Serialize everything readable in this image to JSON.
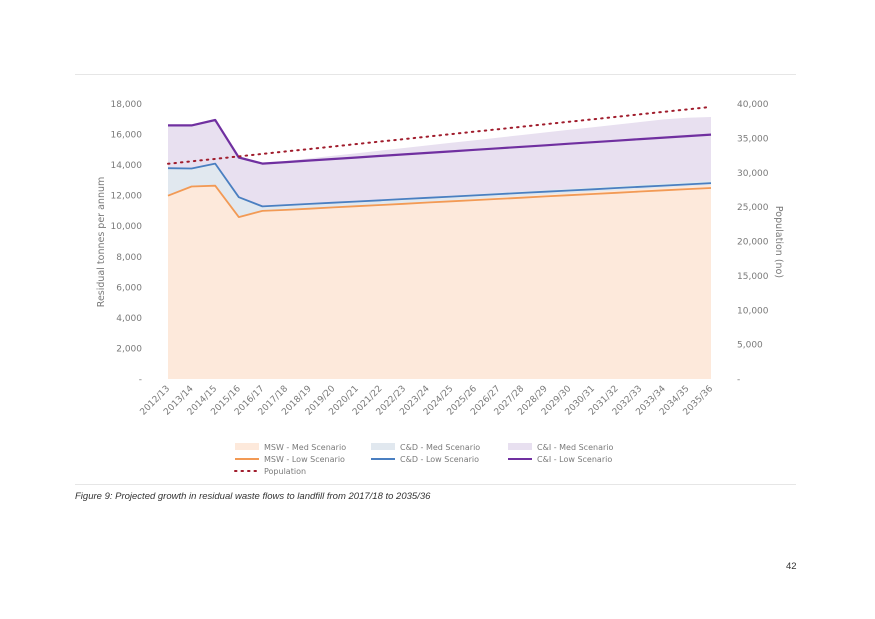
{
  "caption": "Figure 9: Projected growth in residual waste flows to landfill from 2017/18 to 2035/36",
  "page_number": "42",
  "chart_data": {
    "type": "area",
    "title": "",
    "ylabel": "Residual tonnes per annum",
    "y2label": "Population (no)",
    "ylim": [
      0,
      18000
    ],
    "y2lim": [
      0,
      40000
    ],
    "yticks": [
      "-",
      "2,000",
      "4,000",
      "6,000",
      "8,000",
      "10,000",
      "12,000",
      "14,000",
      "16,000",
      "18,000"
    ],
    "y2ticks": [
      "-",
      "5,000",
      "10,000",
      "15,000",
      "20,000",
      "25,000",
      "30,000",
      "35,000",
      "40,000"
    ],
    "grid": false,
    "legend_position": "bottom",
    "categories": [
      "2012/13",
      "2013/14",
      "2014/15",
      "2015/16",
      "2016/17",
      "2017/18",
      "2018/19",
      "2019/20",
      "2020/21",
      "2021/22",
      "2022/23",
      "2023/24",
      "2024/25",
      "2025/26",
      "2026/27",
      "2027/28",
      "2028/29",
      "2029/30",
      "2030/31",
      "2031/32",
      "2032/33",
      "2033/34",
      "2034/35",
      "2035/36"
    ],
    "series": [
      {
        "name": "MSW - Med Scenario",
        "kind": "area",
        "axis": "left",
        "color": "#fde9db",
        "values": [
          12000,
          12600,
          12650,
          10600,
          11000,
          11080,
          11170,
          11260,
          11350,
          11440,
          11530,
          11620,
          11710,
          11800,
          11890,
          11980,
          12070,
          12160,
          12250,
          12340,
          12430,
          12520,
          12610,
          12700
        ]
      },
      {
        "name": "C&D - Med Scenario",
        "kind": "area",
        "axis": "left",
        "color": "#e1e8ef",
        "values": [
          13800,
          13780,
          14100,
          11900,
          11300,
          11380,
          11470,
          11560,
          11650,
          11740,
          11830,
          11920,
          12010,
          12100,
          12190,
          12280,
          12370,
          12460,
          12550,
          12640,
          12730,
          12820,
          12910,
          13000
        ]
      },
      {
        "name": "C&I - Med Scenario",
        "kind": "area",
        "axis": "left",
        "color": "#e8e0f0",
        "values": [
          16600,
          16600,
          16950,
          14500,
          14100,
          14270,
          14440,
          14610,
          14780,
          14950,
          15120,
          15290,
          15460,
          15630,
          15800,
          15970,
          16140,
          16310,
          16480,
          16650,
          16820,
          16990,
          17100,
          17150
        ]
      },
      {
        "name": "MSW - Low Scenario",
        "kind": "line",
        "axis": "left",
        "color": "#f29a55",
        "values": [
          12000,
          12600,
          12650,
          10600,
          11000,
          11070,
          11150,
          11230,
          11310,
          11390,
          11470,
          11550,
          11630,
          11710,
          11790,
          11870,
          11950,
          12030,
          12110,
          12190,
          12270,
          12350,
          12430,
          12500
        ]
      },
      {
        "name": "C&D - Low Scenario",
        "kind": "line",
        "axis": "left",
        "color": "#4a7fc1",
        "values": [
          13800,
          13780,
          14100,
          11900,
          11300,
          11380,
          11460,
          11540,
          11620,
          11700,
          11780,
          11860,
          11940,
          12020,
          12100,
          12180,
          12260,
          12340,
          12420,
          12500,
          12580,
          12660,
          12740,
          12820
        ]
      },
      {
        "name": "C&I - Low Scenario",
        "kind": "line",
        "axis": "left",
        "color": "#7030a0",
        "values": [
          16600,
          16600,
          16950,
          14500,
          14100,
          14200,
          14300,
          14400,
          14500,
          14600,
          14700,
          14800,
          14900,
          15000,
          15100,
          15200,
          15300,
          15400,
          15500,
          15600,
          15700,
          15800,
          15900,
          16000
        ]
      },
      {
        "name": "Population",
        "kind": "dotted",
        "axis": "right",
        "color": "#a01c2c",
        "values": [
          31300,
          31660,
          32020,
          32380,
          32740,
          33100,
          33460,
          33820,
          34180,
          34540,
          34900,
          35260,
          35620,
          35980,
          36340,
          36700,
          37060,
          37420,
          37780,
          38140,
          38500,
          38860,
          39220,
          39580
        ]
      }
    ]
  }
}
